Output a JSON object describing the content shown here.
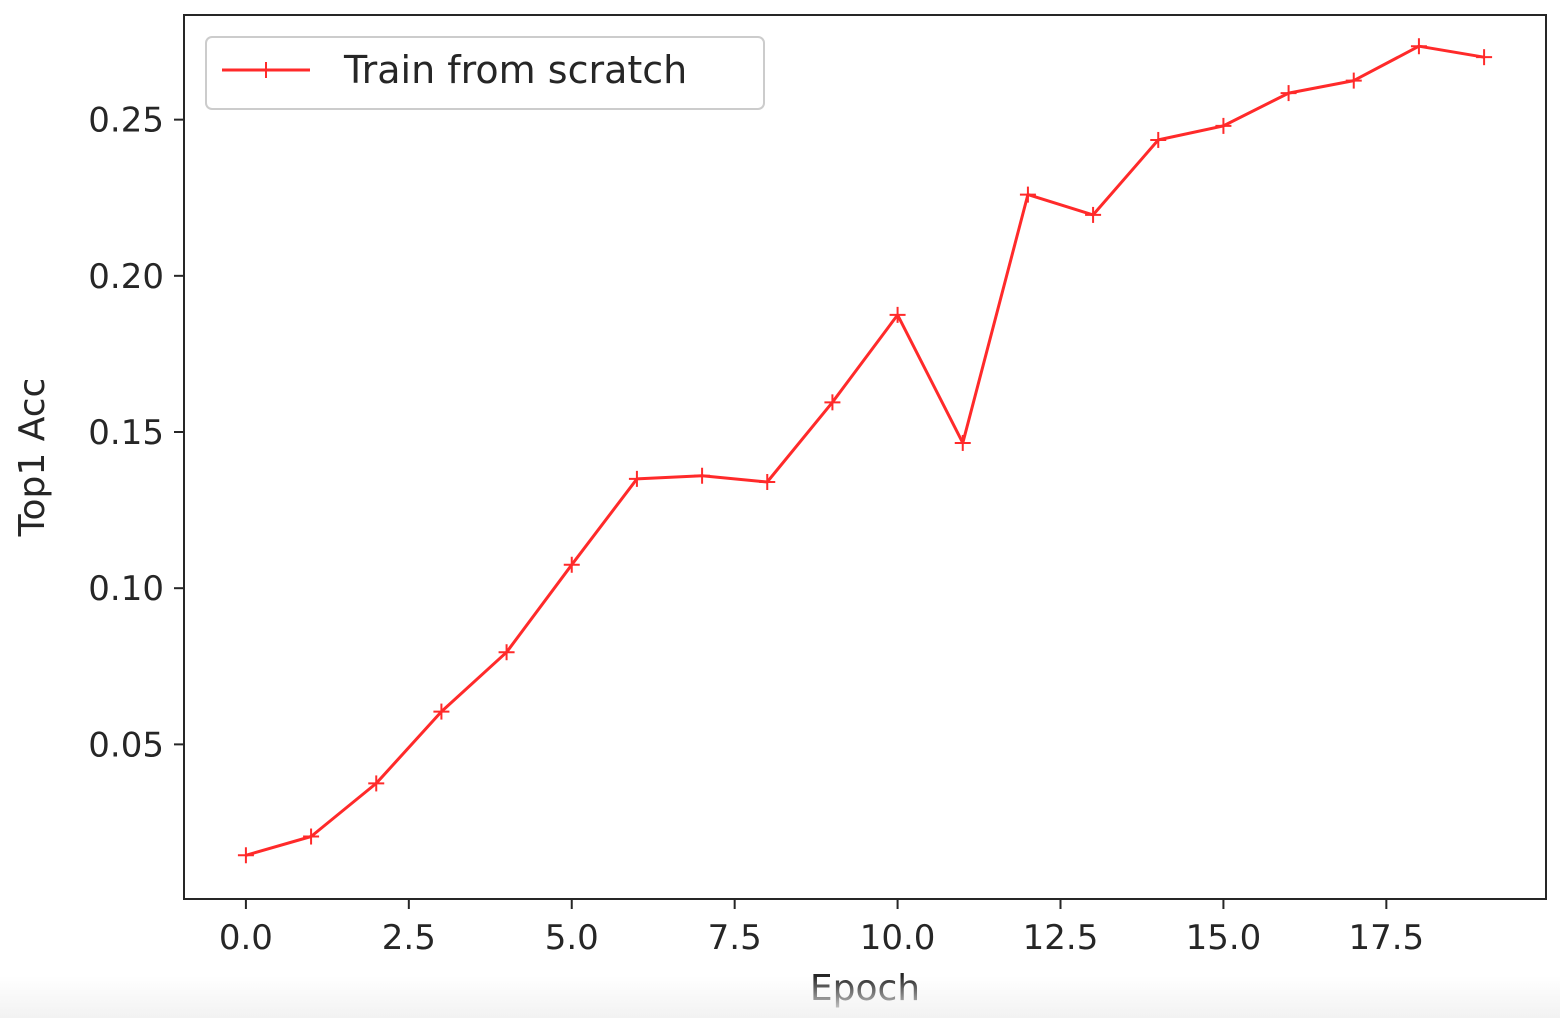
{
  "chart_data": {
    "type": "line",
    "title": "",
    "xlabel": "Epoch",
    "ylabel": "Top1 Acc",
    "xlim": [
      -0.95,
      19.95
    ],
    "ylim": [
      0.0005,
      0.2835
    ],
    "x_ticks": [
      0,
      2.5,
      5,
      7.5,
      10,
      12.5,
      15,
      17.5
    ],
    "x_tick_labels": [
      "0.0",
      "2.5",
      "5.0",
      "7.5",
      "10.0",
      "12.5",
      "15.0",
      "17.5"
    ],
    "y_ticks": [
      0.05,
      0.1,
      0.15,
      0.2,
      0.25
    ],
    "y_tick_labels": [
      "0.05",
      "0.10",
      "0.15",
      "0.20",
      "0.25"
    ],
    "grid": false,
    "legend": {
      "placement": "top-left"
    },
    "series": [
      {
        "name": "Train from scratch",
        "color": "#ff2a2a",
        "marker": "plus",
        "x": [
          0,
          1,
          2,
          3,
          4,
          5,
          6,
          7,
          8,
          9,
          10,
          11,
          12,
          13,
          14,
          15,
          16,
          17,
          18,
          19
        ],
        "y": [
          0.0145,
          0.0205,
          0.0375,
          0.0605,
          0.0795,
          0.1075,
          0.135,
          0.136,
          0.134,
          0.1595,
          0.1875,
          0.1465,
          0.226,
          0.2195,
          0.2435,
          0.248,
          0.2585,
          0.2625,
          0.2735,
          0.27
        ]
      }
    ]
  }
}
